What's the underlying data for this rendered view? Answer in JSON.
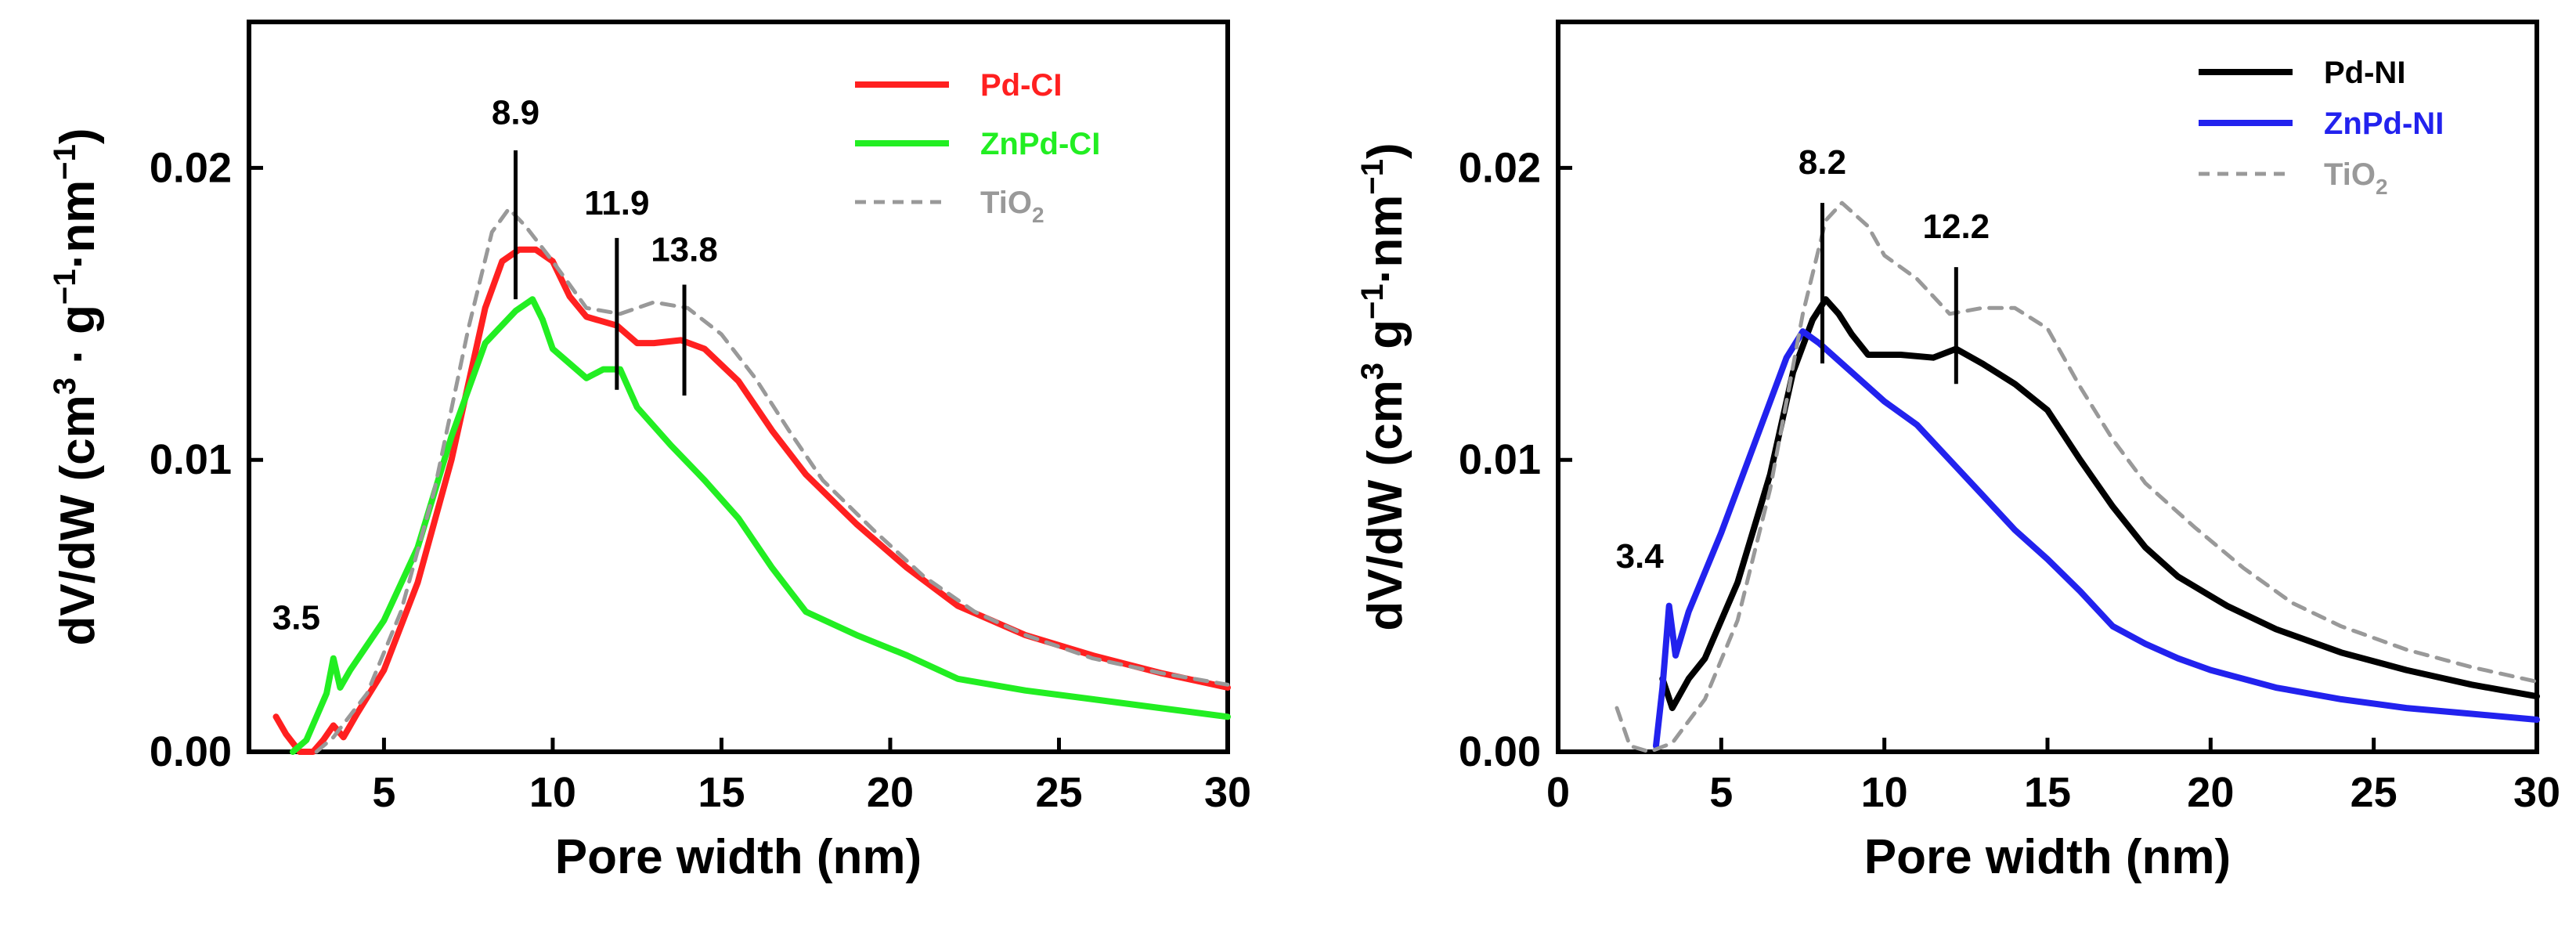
{
  "chart_data": [
    {
      "type": "line",
      "id": "left",
      "xlabel": "Pore width (nm)",
      "ylabel_parts": [
        "dV/dW (cm",
        "3",
        " · g",
        "−1",
        "·nm",
        "−1",
        ")"
      ],
      "xlim": [
        1,
        30
      ],
      "ylim": [
        0,
        0.025
      ],
      "xticks": [
        5,
        10,
        15,
        20,
        25,
        30
      ],
      "xtick_labels": [
        "5",
        "10",
        "15",
        "20",
        "25",
        "30"
      ],
      "yticks": [
        0,
        0.01,
        0.02
      ],
      "ytick_labels": [
        "0.00",
        "0.01",
        "0.02"
      ],
      "series": [
        {
          "name": "Pd-CI",
          "color": "#ff2020",
          "dashed": false,
          "points": [
            [
              1.8,
              0.0012
            ],
            [
              2.1,
              0.0006
            ],
            [
              2.5,
              0.0
            ],
            [
              2.9,
              0.0
            ],
            [
              3.2,
              0.0004
            ],
            [
              3.5,
              0.0009
            ],
            [
              3.8,
              0.0005
            ],
            [
              4.2,
              0.0013
            ],
            [
              5.0,
              0.0028
            ],
            [
              6.0,
              0.0058
            ],
            [
              7.0,
              0.01
            ],
            [
              8.0,
              0.0152
            ],
            [
              8.5,
              0.0168
            ],
            [
              9.0,
              0.0172
            ],
            [
              9.5,
              0.0172
            ],
            [
              10.0,
              0.0168
            ],
            [
              10.5,
              0.0156
            ],
            [
              11.0,
              0.0149
            ],
            [
              11.9,
              0.0146
            ],
            [
              12.5,
              0.014
            ],
            [
              13.0,
              0.014
            ],
            [
              13.8,
              0.0141
            ],
            [
              14.5,
              0.0138
            ],
            [
              15.5,
              0.0127
            ],
            [
              16.5,
              0.011
            ],
            [
              17.5,
              0.0095
            ],
            [
              19.0,
              0.0078
            ],
            [
              20.5,
              0.0063
            ],
            [
              22.0,
              0.005
            ],
            [
              24.0,
              0.004
            ],
            [
              26.0,
              0.0033
            ],
            [
              28.0,
              0.0027
            ],
            [
              30.0,
              0.0022
            ]
          ]
        },
        {
          "name": "ZnPd-CI",
          "color": "#22ee22",
          "dashed": false,
          "points": [
            [
              2.3,
              0.0
            ],
            [
              2.7,
              0.0004
            ],
            [
              3.0,
              0.0012
            ],
            [
              3.3,
              0.002
            ],
            [
              3.5,
              0.0032
            ],
            [
              3.7,
              0.0022
            ],
            [
              4.0,
              0.0028
            ],
            [
              5.0,
              0.0045
            ],
            [
              6.0,
              0.007
            ],
            [
              7.0,
              0.0108
            ],
            [
              8.0,
              0.014
            ],
            [
              8.9,
              0.0151
            ],
            [
              9.4,
              0.0155
            ],
            [
              9.7,
              0.0148
            ],
            [
              10.0,
              0.0138
            ],
            [
              10.5,
              0.0133
            ],
            [
              11.0,
              0.0128
            ],
            [
              11.5,
              0.0131
            ],
            [
              12.0,
              0.0131
            ],
            [
              12.5,
              0.0118
            ],
            [
              13.5,
              0.0105
            ],
            [
              14.5,
              0.0093
            ],
            [
              15.5,
              0.008
            ],
            [
              16.5,
              0.0063
            ],
            [
              17.5,
              0.0048
            ],
            [
              19.0,
              0.004
            ],
            [
              20.5,
              0.0033
            ],
            [
              22.0,
              0.0025
            ],
            [
              24.0,
              0.0021
            ],
            [
              26.0,
              0.0018
            ],
            [
              28.0,
              0.0015
            ],
            [
              30.0,
              0.0012
            ]
          ]
        },
        {
          "name": "TiO",
          "sub": "2",
          "color": "#999999",
          "dashed": true,
          "points": [
            [
              3.0,
              0.0
            ],
            [
              3.5,
              0.0005
            ],
            [
              4.5,
              0.002
            ],
            [
              5.5,
              0.0048
            ],
            [
              6.5,
              0.009
            ],
            [
              7.5,
              0.0145
            ],
            [
              8.2,
              0.0178
            ],
            [
              8.7,
              0.0186
            ],
            [
              9.2,
              0.018
            ],
            [
              10.0,
              0.0168
            ],
            [
              10.5,
              0.016
            ],
            [
              11.0,
              0.0152
            ],
            [
              12.0,
              0.015
            ],
            [
              13.0,
              0.0154
            ],
            [
              14.0,
              0.0152
            ],
            [
              15.0,
              0.0143
            ],
            [
              16.0,
              0.0128
            ],
            [
              17.0,
              0.011
            ],
            [
              18.0,
              0.0093
            ],
            [
              19.5,
              0.0076
            ],
            [
              21.0,
              0.006
            ],
            [
              22.5,
              0.0048
            ],
            [
              24.0,
              0.004
            ],
            [
              26.0,
              0.0032
            ],
            [
              28.0,
              0.0027
            ],
            [
              30.0,
              0.0023
            ]
          ]
        }
      ],
      "annotations": [
        {
          "label": "8.9",
          "x": 8.9,
          "y_low": 0.0155,
          "y_high": 0.0206,
          "label_y": 0.0215
        },
        {
          "label": "11.9",
          "x": 11.9,
          "y_low": 0.0124,
          "y_high": 0.0176,
          "label_y": 0.0184
        },
        {
          "label": "13.8",
          "x": 13.9,
          "y_low": 0.0122,
          "y_high": 0.016,
          "label_y": 0.0168
        },
        {
          "label": "3.5",
          "x": 2.4,
          "y_low": null,
          "y_high": null,
          "label_y": 0.0042
        }
      ],
      "legend_position": "top-right"
    },
    {
      "type": "line",
      "id": "right",
      "xlabel": "Pore width (nm)",
      "ylabel_parts": [
        "dV/dW (cm",
        "3",
        "  g",
        "−1",
        "·nm",
        "−1",
        ")"
      ],
      "xlim": [
        0,
        30
      ],
      "ylim": [
        0,
        0.025
      ],
      "xticks": [
        0,
        5,
        10,
        15,
        20,
        25,
        30
      ],
      "xtick_labels": [
        "0",
        "5",
        "10",
        "15",
        "20",
        "25",
        "30"
      ],
      "yticks": [
        0,
        0.01,
        0.02
      ],
      "ytick_labels": [
        "0.00",
        "0.01",
        "0.02"
      ],
      "series": [
        {
          "name": "Pd-NI",
          "color": "#000000",
          "dashed": false,
          "points": [
            [
              3.2,
              0.0025
            ],
            [
              3.5,
              0.0015
            ],
            [
              4.0,
              0.0025
            ],
            [
              4.5,
              0.0032
            ],
            [
              5.5,
              0.0058
            ],
            [
              6.5,
              0.0095
            ],
            [
              7.2,
              0.013
            ],
            [
              7.8,
              0.0148
            ],
            [
              8.2,
              0.0155
            ],
            [
              8.6,
              0.015
            ],
            [
              9.0,
              0.0143
            ],
            [
              9.5,
              0.0136
            ],
            [
              10.5,
              0.0136
            ],
            [
              11.5,
              0.0135
            ],
            [
              12.2,
              0.0138
            ],
            [
              13.0,
              0.0133
            ],
            [
              14.0,
              0.0126
            ],
            [
              15.0,
              0.0117
            ],
            [
              16.0,
              0.01
            ],
            [
              17.0,
              0.0084
            ],
            [
              18.0,
              0.007
            ],
            [
              19.0,
              0.006
            ],
            [
              20.5,
              0.005
            ],
            [
              22.0,
              0.0042
            ],
            [
              24.0,
              0.0034
            ],
            [
              26.0,
              0.0028
            ],
            [
              28.0,
              0.0023
            ],
            [
              30.0,
              0.0019
            ]
          ]
        },
        {
          "name": "ZnPd-NI",
          "color": "#2222ee",
          "dashed": false,
          "points": [
            [
              3.0,
              0.0002
            ],
            [
              3.2,
              0.0022
            ],
            [
              3.4,
              0.005
            ],
            [
              3.6,
              0.0033
            ],
            [
              4.0,
              0.0048
            ],
            [
              5.0,
              0.0075
            ],
            [
              6.0,
              0.0105
            ],
            [
              7.0,
              0.0135
            ],
            [
              7.5,
              0.0144
            ],
            [
              8.0,
              0.014
            ],
            [
              9.0,
              0.013
            ],
            [
              10.0,
              0.012
            ],
            [
              11.0,
              0.0112
            ],
            [
              12.0,
              0.01
            ],
            [
              13.0,
              0.0088
            ],
            [
              14.0,
              0.0076
            ],
            [
              15.0,
              0.0066
            ],
            [
              16.0,
              0.0055
            ],
            [
              17.0,
              0.0043
            ],
            [
              18.0,
              0.0037
            ],
            [
              19.0,
              0.0032
            ],
            [
              20.0,
              0.0028
            ],
            [
              22.0,
              0.0022
            ],
            [
              24.0,
              0.0018
            ],
            [
              26.0,
              0.0015
            ],
            [
              28.0,
              0.0013
            ],
            [
              30.0,
              0.0011
            ]
          ]
        },
        {
          "name": "TiO",
          "sub": "2",
          "color": "#999999",
          "dashed": true,
          "points": [
            [
              1.8,
              0.0015
            ],
            [
              2.2,
              0.0002
            ],
            [
              2.8,
              0.0
            ],
            [
              3.5,
              0.0003
            ],
            [
              4.5,
              0.0018
            ],
            [
              5.5,
              0.0045
            ],
            [
              6.5,
              0.009
            ],
            [
              7.5,
              0.015
            ],
            [
              8.2,
              0.0182
            ],
            [
              8.7,
              0.0188
            ],
            [
              9.5,
              0.018
            ],
            [
              10.0,
              0.017
            ],
            [
              11.0,
              0.0162
            ],
            [
              12.0,
              0.015
            ],
            [
              13.0,
              0.0152
            ],
            [
              14.0,
              0.0152
            ],
            [
              15.0,
              0.0145
            ],
            [
              16.0,
              0.0125
            ],
            [
              17.0,
              0.0107
            ],
            [
              18.0,
              0.0092
            ],
            [
              19.5,
              0.0077
            ],
            [
              21.0,
              0.0063
            ],
            [
              22.5,
              0.0051
            ],
            [
              24.0,
              0.0043
            ],
            [
              26.0,
              0.0035
            ],
            [
              28.0,
              0.0029
            ],
            [
              30.0,
              0.0024
            ]
          ]
        }
      ],
      "annotations": [
        {
          "label": "8.2",
          "x": 8.1,
          "y_low": 0.0133,
          "y_high": 0.0188,
          "label_y": 0.0198
        },
        {
          "label": "12.2",
          "x": 12.2,
          "y_low": 0.0126,
          "y_high": 0.0166,
          "label_y": 0.0176
        },
        {
          "label": "3.4",
          "x": 2.5,
          "y_low": null,
          "y_high": null,
          "label_y": 0.0063
        }
      ],
      "legend_position": "top-right"
    }
  ]
}
